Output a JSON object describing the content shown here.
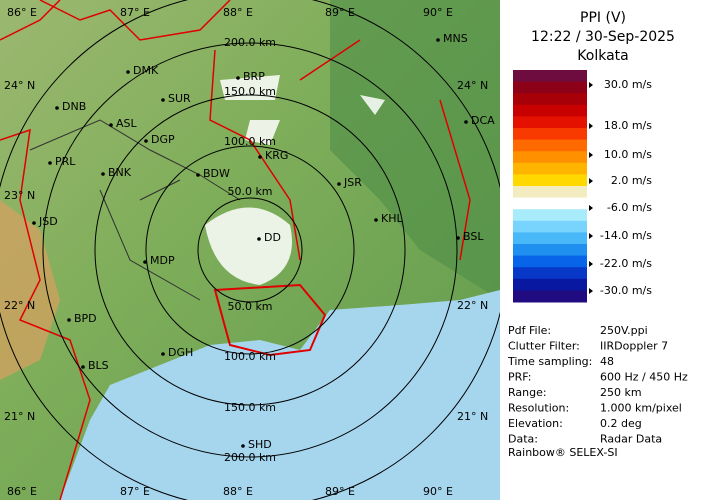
{
  "header": {
    "title": "PPI (V)",
    "time": "12:22 / 30-Sep-2025",
    "site": "Kolkata"
  },
  "scale": {
    "labels": [
      "30.0 m/s",
      "18.0 m/s",
      "10.0 m/s",
      "2.0 m/s",
      "-6.0 m/s",
      "-14.0 m/s",
      "-22.0 m/s",
      "-30.0 m/s"
    ],
    "colors": [
      "#6e0c40",
      "#8c0018",
      "#a80008",
      "#c80000",
      "#e41000",
      "#f83a00",
      "#ff6a00",
      "#ff9000",
      "#ffb400",
      "#ffd800",
      "#f2ecc0",
      "#ffffff",
      "#a8ecfc",
      "#78d4fc",
      "#48b8f8",
      "#2090f0",
      "#0864e8",
      "#0838c8",
      "#0818a0",
      "#200c80"
    ]
  },
  "info": [
    {
      "key": "Pdf File:",
      "value": "250V.ppi"
    },
    {
      "key": "Clutter Filter:",
      "value": "IIRDoppler 7"
    },
    {
      "key": "Time sampling:",
      "value": "48"
    },
    {
      "key": "PRF:",
      "value": "600 Hz / 450 Hz"
    },
    {
      "key": "Range:",
      "value": "250 km"
    },
    {
      "key": "Resolution:",
      "value": "1.000 km/pixel"
    },
    {
      "key": "Elevation:",
      "value": "0.2 deg"
    },
    {
      "key": "Data:",
      "value": "Radar Data"
    }
  ],
  "footer": "Rainbow® SELEX-SI",
  "map": {
    "lon_top": [
      "86° E",
      "87° E",
      "88° E",
      "89° E",
      "90° E"
    ],
    "lon_bottom": [
      "86° E",
      "87° E",
      "88° E",
      "89° E",
      "90° E"
    ],
    "lat_left": [
      "24° N",
      "23° N",
      "22° N",
      "21° N"
    ],
    "lat_right": [
      "24° N",
      "22° N",
      "21° N"
    ],
    "range_labels": [
      "200.0 km",
      "150.0 km",
      "100.0 km",
      "50.0 km",
      "50.0 km",
      "100.0 km",
      "150.0 km",
      "200.0 km"
    ],
    "cities": [
      "MNS",
      "DMK",
      "BRP",
      "DNB",
      "SUR",
      "ASL",
      "DCA",
      "DGP",
      "KRG",
      "PRL",
      "BNK",
      "BDW",
      "JSR",
      "KHL",
      "JSD",
      "DD",
      "BSL",
      "MDP",
      "BPD",
      "DGH",
      "BLS",
      "SHD"
    ]
  }
}
